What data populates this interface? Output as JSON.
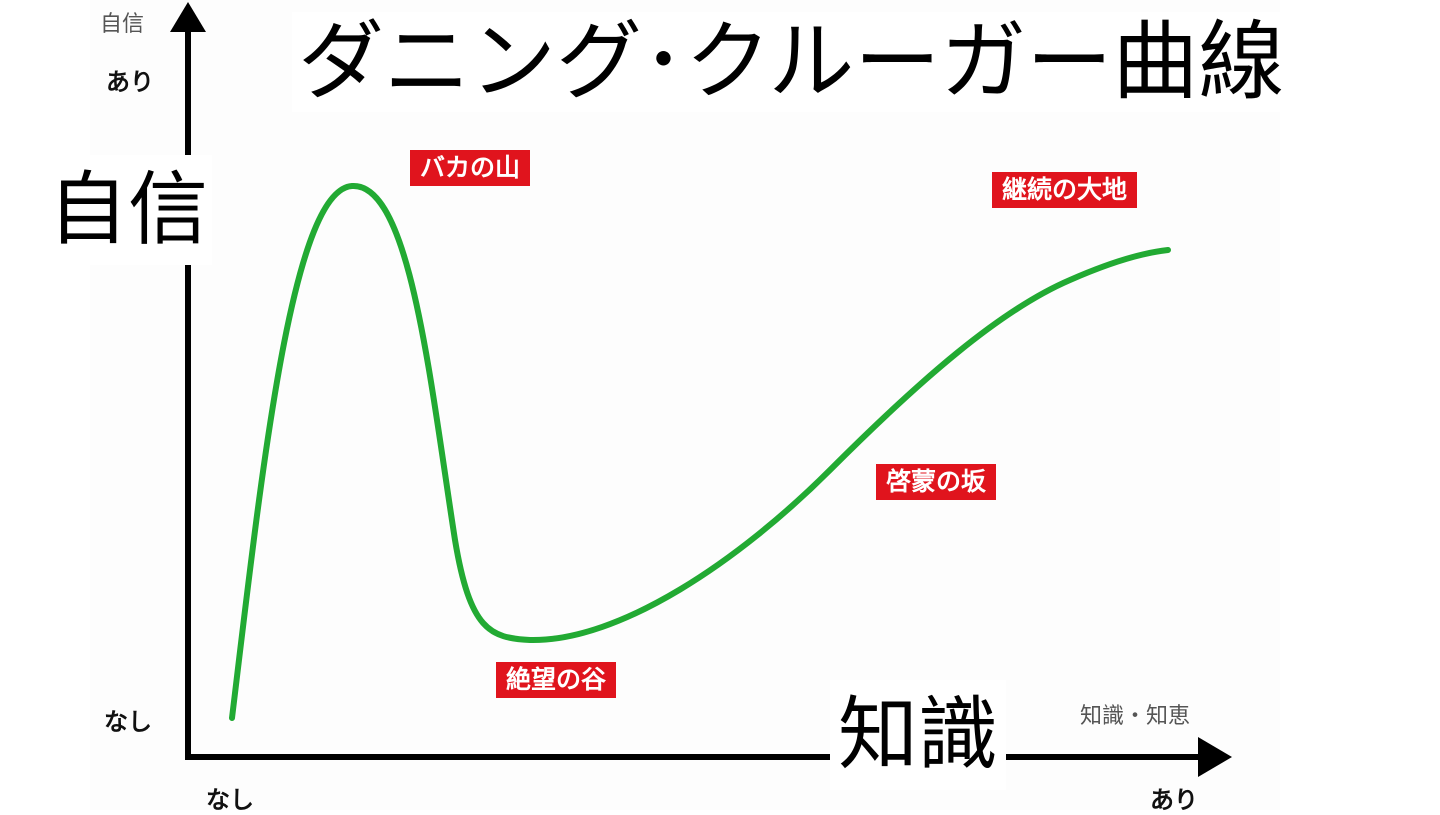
{
  "title": "ダニング･クルーガー曲線",
  "y_axis": {
    "big_label": "自信",
    "small_label": "自信",
    "top_value": "あり",
    "bottom_value": "なし"
  },
  "x_axis": {
    "big_label": "知識",
    "small_label": "知識・知恵",
    "start_value": "なし",
    "end_value": "あり"
  },
  "stages": [
    {
      "label": "バカの山"
    },
    {
      "label": "継続の大地"
    },
    {
      "label": "啓蒙の坂"
    },
    {
      "label": "絶望の谷"
    }
  ],
  "colors": {
    "curve": "#22aa33",
    "tag_background": "#e0141d",
    "tag_text": "#ffffff",
    "axis": "#000000"
  }
}
